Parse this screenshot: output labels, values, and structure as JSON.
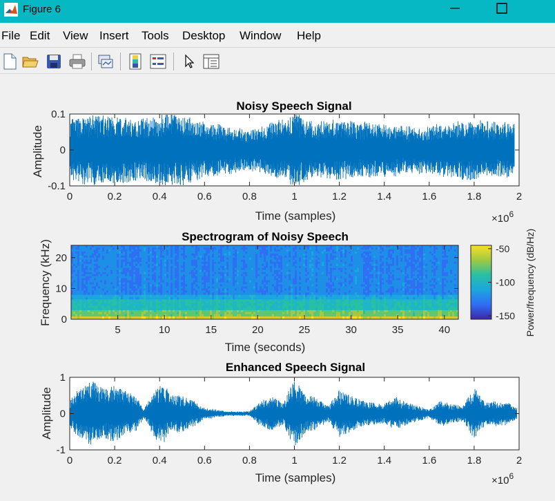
{
  "window": {
    "title": "Figure 6",
    "icon": "matlab-icon"
  },
  "menu": [
    "File",
    "Edit",
    "View",
    "Insert",
    "Tools",
    "Desktop",
    "Window",
    "Help"
  ],
  "toolbar_icons": [
    "new-figure-icon",
    "open-file-icon",
    "save-icon",
    "print-icon",
    "link-plot-icon",
    "colorbar-icon",
    "legend-icon",
    "pointer-icon",
    "property-inspector-icon"
  ],
  "chart_data": [
    {
      "type": "line",
      "title": "Noisy Speech Signal",
      "xlabel": "Time (samples)",
      "ylabel": "Amplitude",
      "x_multiplier": "×10",
      "x_multiplier_exp": "6",
      "xlim": [
        0,
        2
      ],
      "ylim": [
        -0.1,
        0.1
      ],
      "xticks": [
        "0",
        "0.2",
        "0.4",
        "0.6",
        "0.8",
        "1",
        "1.2",
        "1.4",
        "1.6",
        "1.8",
        "2"
      ],
      "yticks": [
        "0.1",
        "0",
        "-0.1"
      ],
      "color": "#0072bd",
      "envelope": {
        "x": [
          0,
          0.1,
          0.2,
          0.3,
          0.4,
          0.45,
          0.5,
          0.6,
          0.7,
          0.8,
          0.9,
          0.95,
          1.0,
          1.05,
          1.1,
          1.2,
          1.3,
          1.4,
          1.5,
          1.6,
          1.7,
          1.8,
          1.9,
          1.98
        ],
        "amp": [
          0.08,
          0.09,
          0.09,
          0.08,
          0.09,
          0.1,
          0.09,
          0.07,
          0.06,
          0.05,
          0.07,
          0.08,
          0.1,
          0.08,
          0.07,
          0.08,
          0.07,
          0.07,
          0.06,
          0.06,
          0.07,
          0.08,
          0.07,
          0.07
        ]
      }
    },
    {
      "type": "heatmap",
      "title": "Spectrogram of Noisy Speech",
      "xlabel": "Time (seconds)",
      "ylabel": "Frequency (kHz)",
      "xlim": [
        0,
        41.5
      ],
      "ylim": [
        0,
        24
      ],
      "xticks": [
        "5",
        "10",
        "15",
        "20",
        "25",
        "30",
        "35",
        "40"
      ],
      "yticks": [
        "20",
        "10",
        "0"
      ],
      "colorbar": {
        "label": "Power/frequency (dB/Hz)",
        "ticks": [
          "-50",
          "-100",
          "-150"
        ],
        "range": [
          -155,
          -45
        ]
      },
      "bands": [
        {
          "kHz": [
            0,
            1
          ],
          "dB": -55
        },
        {
          "kHz": [
            1,
            3
          ],
          "dB": -75
        },
        {
          "kHz": [
            3,
            6.5
          ],
          "dB": -95
        },
        {
          "kHz": [
            6.5,
            8
          ],
          "dB": -110
        },
        {
          "kHz": [
            8,
            24
          ],
          "dB": -125
        }
      ]
    },
    {
      "type": "line",
      "title": "Enhanced Speech Signal",
      "xlabel": "Time (samples)",
      "ylabel": "Amplitude",
      "x_multiplier": "×10",
      "x_multiplier_exp": "6",
      "xlim": [
        0,
        2
      ],
      "ylim": [
        -1,
        1
      ],
      "xticks": [
        "0",
        "0.2",
        "0.4",
        "0.6",
        "0.8",
        "1",
        "1.2",
        "1.4",
        "1.6",
        "1.8",
        "2"
      ],
      "yticks": [
        "1",
        "0",
        "-1"
      ],
      "color": "#0072bd",
      "envelope": {
        "x": [
          0,
          0.03,
          0.1,
          0.15,
          0.2,
          0.25,
          0.3,
          0.33,
          0.38,
          0.42,
          0.45,
          0.5,
          0.55,
          0.6,
          0.7,
          0.8,
          0.85,
          0.9,
          0.95,
          1.0,
          1.05,
          1.1,
          1.15,
          1.2,
          1.3,
          1.4,
          1.45,
          1.5,
          1.6,
          1.65,
          1.7,
          1.75,
          1.8,
          1.85,
          1.9,
          1.95,
          1.99
        ],
        "amp": [
          0.35,
          0.6,
          0.9,
          0.7,
          0.8,
          0.6,
          0.45,
          0.1,
          0.7,
          0.8,
          0.55,
          0.5,
          0.35,
          0.15,
          0.05,
          0.05,
          0.35,
          0.45,
          0.3,
          0.95,
          0.5,
          0.45,
          0.2,
          0.65,
          0.35,
          0.25,
          0.45,
          0.3,
          0.1,
          0.35,
          0.25,
          0.2,
          0.7,
          0.3,
          0.35,
          0.3,
          0.15
        ]
      }
    }
  ]
}
